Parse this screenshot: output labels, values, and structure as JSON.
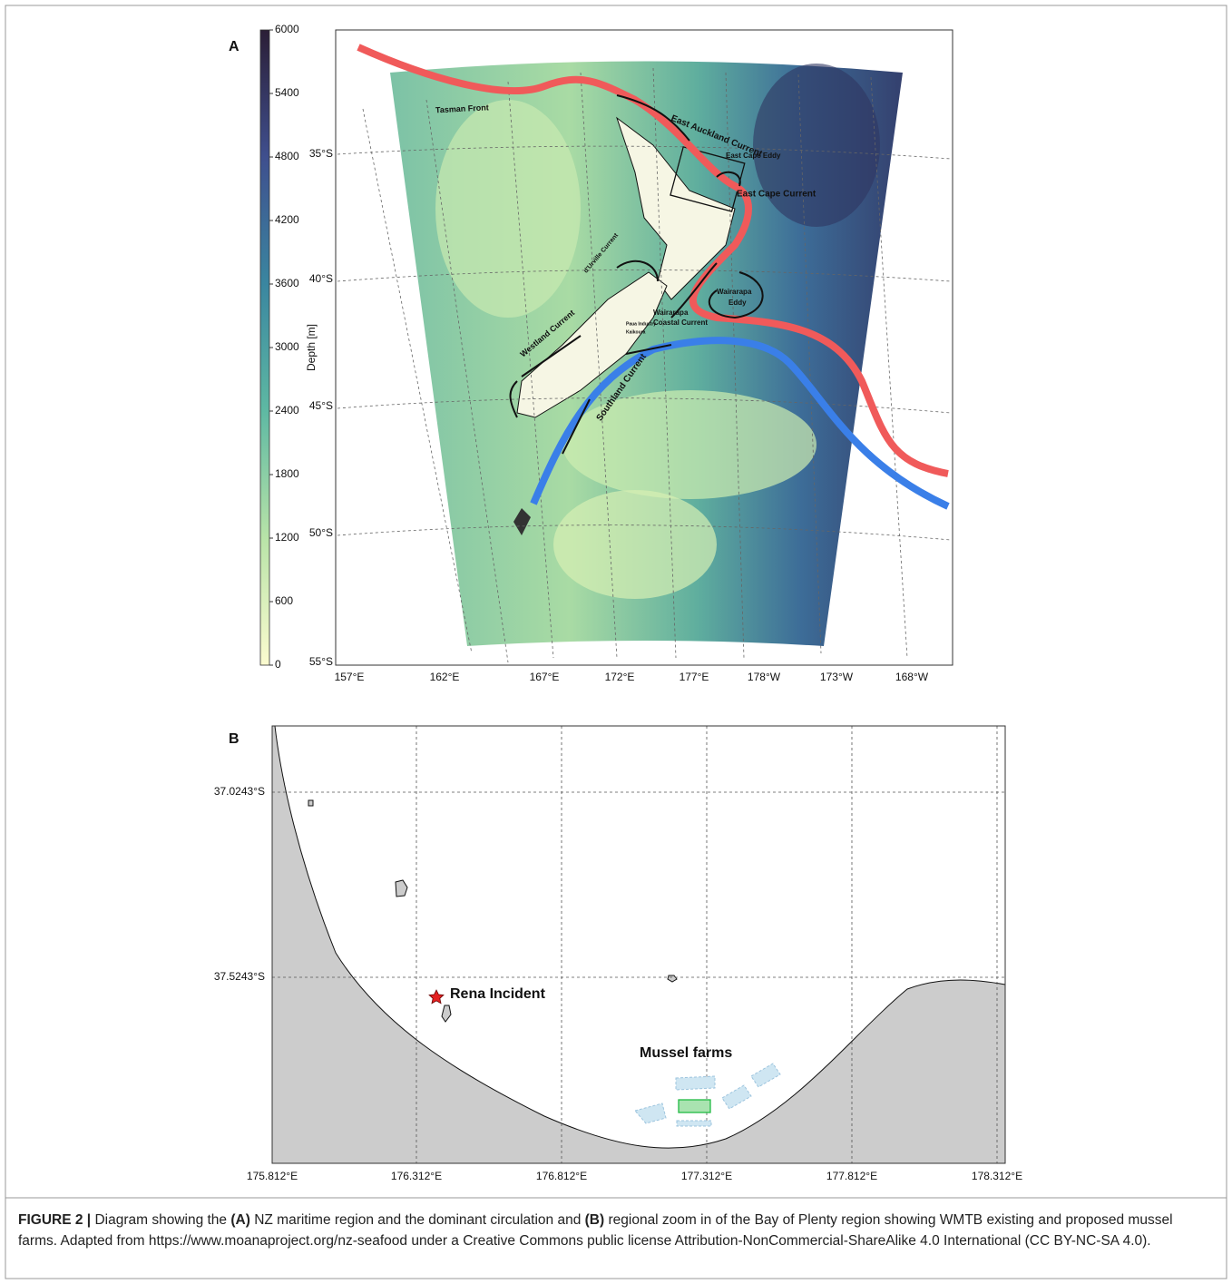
{
  "panel_a": {
    "label": "A",
    "colorbar": {
      "label": "Depth [m]",
      "lim": [
        0,
        6000
      ],
      "ticks": [
        0,
        600,
        1200,
        1800,
        2400,
        3000,
        3600,
        4200,
        4800,
        5400,
        6000
      ]
    },
    "lat_labels": [
      "35°S",
      "40°S",
      "45°S",
      "50°S",
      "55°S"
    ],
    "lon_labels": [
      "157°E",
      "162°E",
      "167°E",
      "172°E",
      "177°E",
      "178°W",
      "173°W",
      "168°W"
    ],
    "annotations": [
      "Tasman Front",
      "East Auckland Current",
      "East Cape Eddy",
      "East Cape Current",
      "d'Urville Current",
      "Wairarapa",
      "Eddy",
      "Wairarapa",
      "Coastal Current",
      "Paua Industry",
      "Kaikoura",
      "Westland Current",
      "Southland Current"
    ]
  },
  "panel_b": {
    "label": "B",
    "lat_labels": [
      "37.0243°S",
      "37.5243°S"
    ],
    "lon_labels": [
      "175.812°E",
      "176.312°E",
      "176.812°E",
      "177.312°E",
      "177.812°E",
      "178.312°E"
    ],
    "annotations": [
      "Rena Incident",
      "Mussel farms"
    ]
  },
  "caption": {
    "figure_label": "FIGURE 2 |",
    "parts": [
      " Diagram showing the ",
      "(A)",
      " NZ maritime region and the dominant circulation and ",
      "(B)",
      " regional zoom in of the Bay of Plenty region showing WMTB existing and proposed mussel farms. Adapted from https://www.moanaproject.org/nz-seafood under a Creative Commons public license Attribution-NonCommercial-ShareAlike 4.0 International (CC BY-NC-SA 4.0)."
    ]
  }
}
